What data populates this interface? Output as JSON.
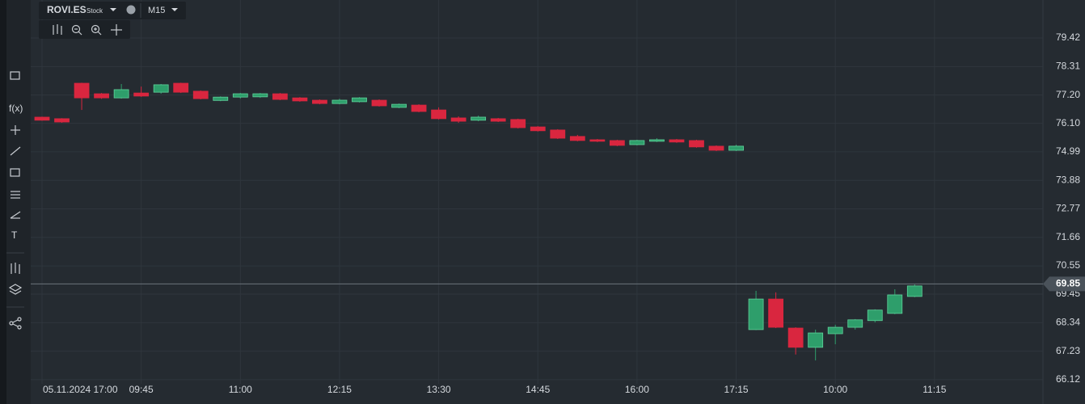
{
  "symbol": "ROVI.ES",
  "instrument_type": "Stock",
  "timeframe": "M15",
  "toolbar": {
    "function_label": "f(x)",
    "text_tool": "T"
  },
  "chart_data": {
    "type": "candlestick",
    "categories": [
      "05.11.2024 17:00",
      null,
      null,
      null,
      null,
      "09:45",
      null,
      null,
      null,
      null,
      "11:00",
      null,
      null,
      null,
      null,
      "12:15",
      null,
      null,
      null,
      null,
      "13:30",
      null,
      null,
      null,
      null,
      "14:45",
      null,
      null,
      null,
      null,
      "16:00",
      null,
      null,
      null,
      null,
      "17:15",
      null,
      null,
      null,
      null,
      "10:00",
      null,
      null,
      null,
      null,
      "11:15"
    ],
    "open": [
      76.34,
      76.28,
      77.66,
      77.25,
      77.09,
      77.28,
      77.31,
      77.66,
      77.35,
      76.99,
      77.12,
      77.13,
      77.25,
      77.09,
      77.0,
      76.87,
      76.94,
      77.0,
      76.72,
      76.81,
      76.62,
      76.31,
      76.22,
      76.28,
      76.25,
      75.96,
      75.84,
      75.59,
      75.46,
      75.43,
      75.27,
      75.4,
      75.46,
      75.43,
      75.21,
      75.05,
      68.07,
      69.26,
      68.13,
      67.38,
      67.91,
      68.16,
      68.42,
      68.7,
      69.36,
      null
    ],
    "high": [
      76.36,
      76.3,
      77.68,
      77.28,
      77.63,
      77.53,
      77.63,
      77.68,
      77.38,
      77.15,
      77.28,
      77.28,
      77.28,
      77.12,
      77.03,
      77.06,
      77.12,
      77.03,
      76.87,
      76.84,
      76.72,
      76.37,
      76.4,
      76.31,
      76.28,
      75.99,
      75.87,
      75.65,
      75.49,
      75.46,
      75.46,
      75.52,
      75.49,
      75.46,
      75.24,
      75.27,
      69.58,
      69.52,
      68.16,
      68.07,
      68.26,
      68.48,
      68.86,
      69.64,
      69.83,
      null
    ],
    "low": [
      76.2,
      76.12,
      76.62,
      77.05,
      77.06,
      77.13,
      77.25,
      77.28,
      77.03,
      76.96,
      77.06,
      77.09,
      77.0,
      76.94,
      76.84,
      76.84,
      76.91,
      76.75,
      76.69,
      76.53,
      76.25,
      76.12,
      76.18,
      76.15,
      75.9,
      75.78,
      75.49,
      75.4,
      75.37,
      75.21,
      75.24,
      75.37,
      75.34,
      75.15,
      75.02,
      75.02,
      68.05,
      68.13,
      67.1,
      66.87,
      67.5,
      68.07,
      68.35,
      68.67,
      69.33,
      null
    ],
    "close": [
      76.22,
      76.15,
      77.09,
      77.09,
      77.41,
      77.16,
      77.6,
      77.31,
      77.06,
      77.12,
      77.25,
      77.25,
      77.03,
      76.97,
      76.87,
      77.0,
      77.09,
      76.78,
      76.84,
      76.56,
      76.28,
      76.18,
      76.34,
      76.18,
      75.93,
      75.81,
      75.52,
      75.43,
      75.4,
      75.24,
      75.43,
      75.46,
      75.37,
      75.18,
      75.05,
      75.21,
      69.26,
      68.16,
      67.38,
      67.94,
      68.16,
      68.45,
      68.83,
      69.42,
      69.77,
      null
    ],
    "up_color": "#2e9e6b",
    "down_color": "#d9263f",
    "current_price": 69.85,
    "ylim": [
      65.96,
      80.9
    ],
    "yticks": [
      79.42,
      78.31,
      {
        "value": 77.2,
        "label": "77.20"
      },
      {
        "value": 76.1,
        "label": "76.10"
      },
      74.99,
      73.88,
      72.77,
      71.66,
      70.55,
      69.45,
      68.34,
      67.23,
      66.12
    ],
    "grid": true
  }
}
